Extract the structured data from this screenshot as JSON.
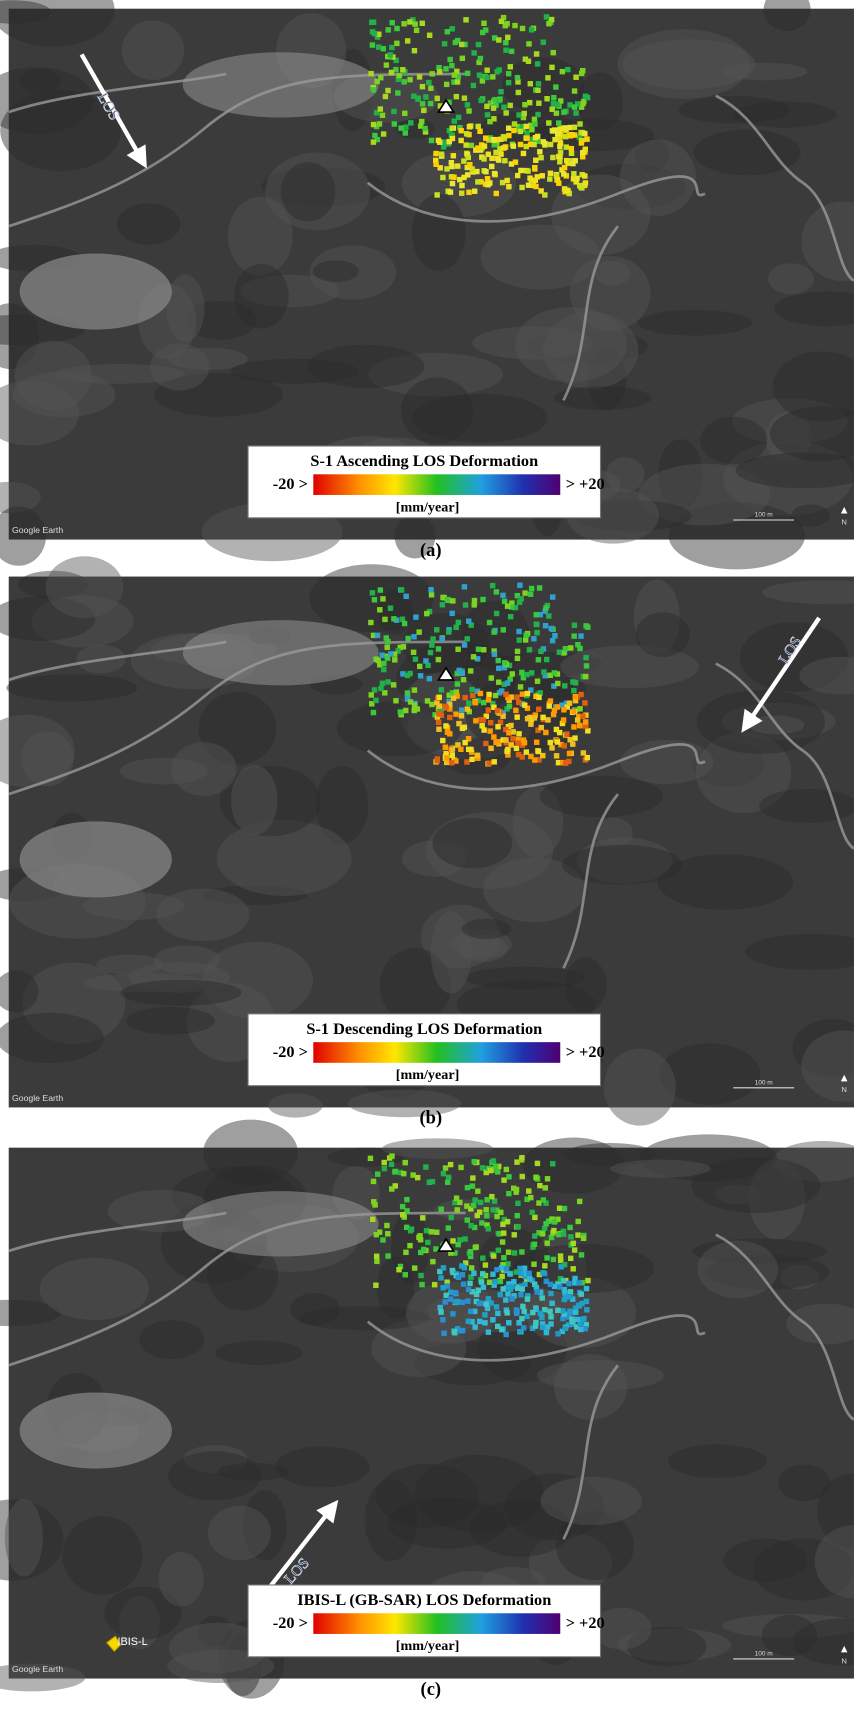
{
  "panels": [
    {
      "label": "(a)",
      "legend": {
        "title": "S-1 Ascending LOS Deformation",
        "min_label": "-20 >",
        "max_label": "> +20",
        "unit": "[mm/year]"
      },
      "arrow_label": "LOS",
      "attribution": "Google Earth",
      "scale": "100 m",
      "north": "N"
    },
    {
      "label": "(b)",
      "legend": {
        "title": "S-1 Descending LOS Deformation",
        "min_label": "-20 >",
        "max_label": "> +20",
        "unit": "[mm/year]"
      },
      "arrow_label": "LOS",
      "attribution": "Google Earth",
      "scale": "100 m",
      "north": "N"
    },
    {
      "label": "(c)",
      "legend": {
        "title": "IBIS-L (GB-SAR) LOS Deformation",
        "min_label": "-20 >",
        "max_label": "> +20",
        "unit": "[mm/year]"
      },
      "arrow_label": "LOS",
      "attribution": "Google Earth",
      "scale": "100 m",
      "north": "N",
      "marker_label": "IBIS-L"
    }
  ]
}
